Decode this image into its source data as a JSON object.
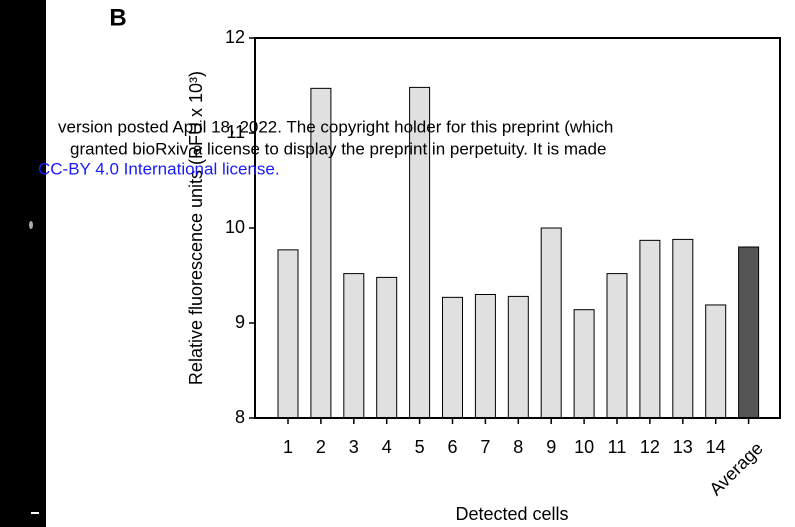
{
  "chart_data": {
    "type": "bar",
    "panel_label": "B",
    "x_label": "Detected cells",
    "y_label": "Relative fluorescence units (RFU x 10³)",
    "categories": [
      "1",
      "2",
      "3",
      "4",
      "5",
      "6",
      "7",
      "8",
      "9",
      "10",
      "11",
      "12",
      "13",
      "14",
      "Average"
    ],
    "values": [
      9.77,
      11.47,
      9.52,
      9.48,
      11.48,
      9.27,
      9.3,
      9.28,
      10.0,
      9.14,
      9.52,
      9.87,
      9.88,
      9.19,
      9.8
    ],
    "colors": [
      "#e0e0e0",
      "#e0e0e0",
      "#e0e0e0",
      "#e0e0e0",
      "#e0e0e0",
      "#e0e0e0",
      "#e0e0e0",
      "#e0e0e0",
      "#e0e0e0",
      "#e0e0e0",
      "#e0e0e0",
      "#e0e0e0",
      "#e0e0e0",
      "#e0e0e0",
      "#555555"
    ],
    "ylim": [
      8,
      12
    ],
    "yticks": [
      8,
      9,
      10,
      11,
      12
    ]
  },
  "overlay": {
    "line1": "version posted April 18, 2022. The copyright holder for this preprint (which",
    "line2": "granted bioRxiv a license to display the preprint in perpetuity. It is made",
    "line3": "CC-BY 4.0 International license."
  }
}
